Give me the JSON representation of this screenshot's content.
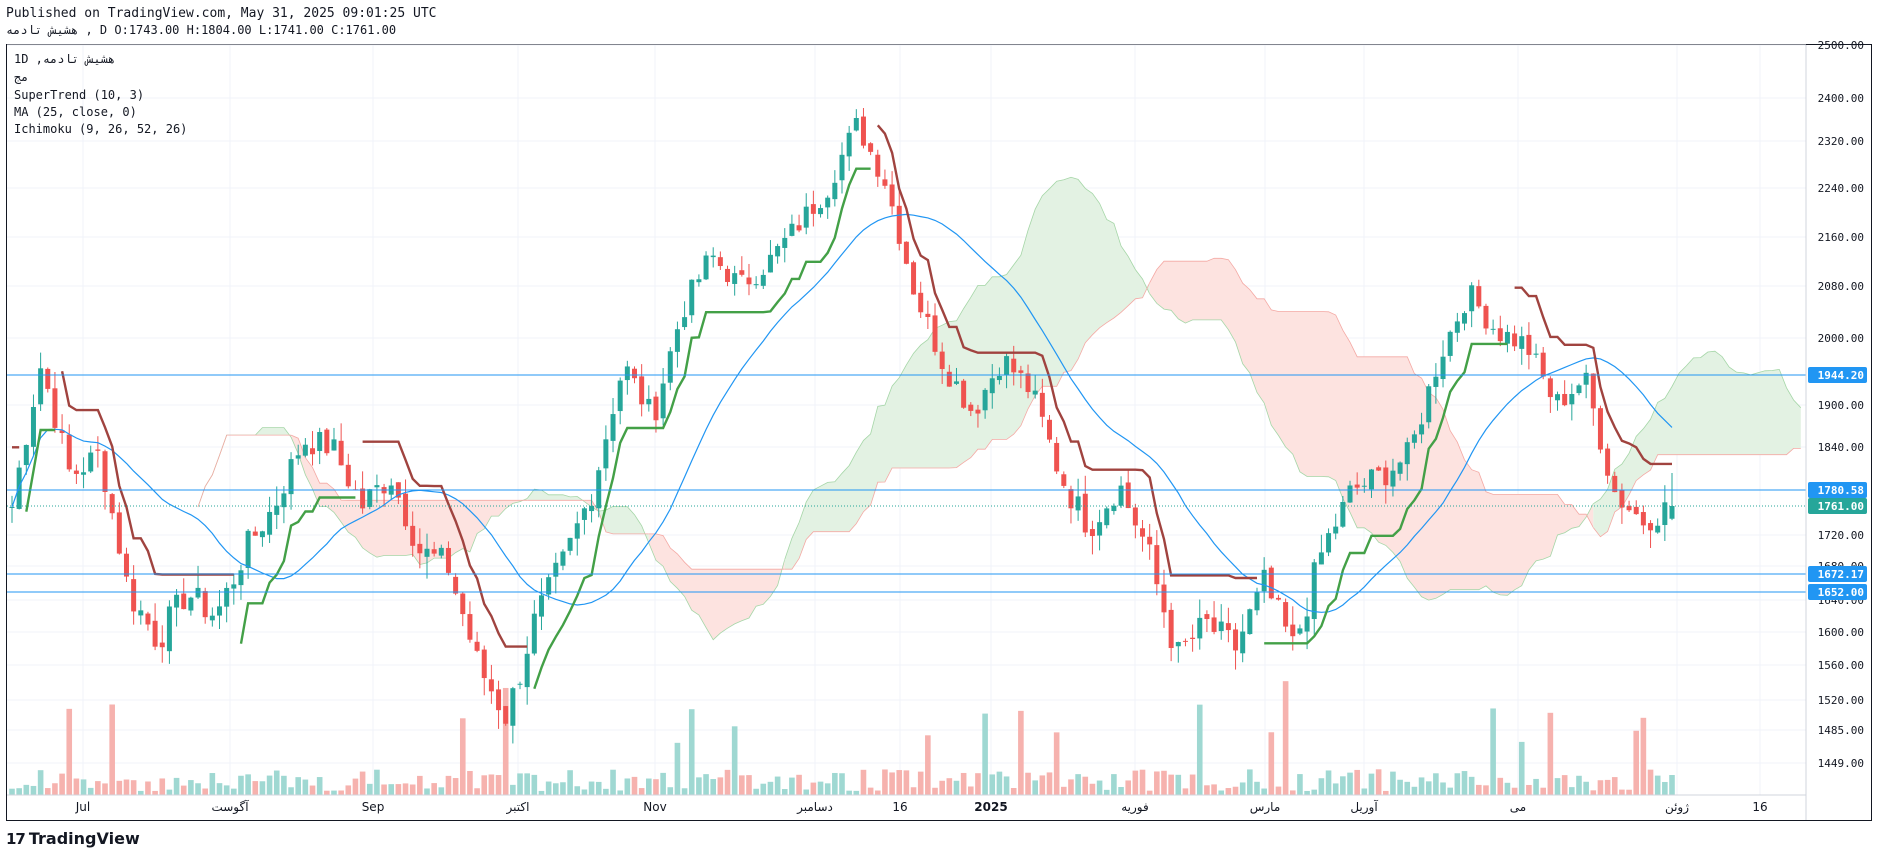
{
  "header": {
    "published": "Published on TradingView.com, May 31, 2025 09:01:25 UTC",
    "symbol_line": "هشیش تادمه , D O:1743.00 H:1804.00 L:1741.00 C:1761.00"
  },
  "legend": {
    "symbol": "1D ,هشیش تادمه",
    "sub": "مج",
    "supertrend": "SuperTrend (10, 3)",
    "ma": "MA (25, close, 0)",
    "ichimoku": "Ichimoku (9, 26, 52, 26)"
  },
  "brand": "TradingView",
  "colors": {
    "up": "#26a69a",
    "down": "#ef5350",
    "supertrend_up": "#43a047",
    "supertrend_down": "#a0433f",
    "ma": "#2196f3",
    "level": "#2196f3",
    "cloud_bull": "#e3f2e3",
    "cloud_bear": "#fde3e0"
  },
  "chart_data": {
    "type": "candlestick",
    "y_axis_ticks": [
      "2500.00",
      "2400.00",
      "2320.00",
      "2240.00",
      "2160.00",
      "2080.00",
      "2000.00",
      "1900.00",
      "1840.00",
      "1720.00",
      "1680.00",
      "1640.00",
      "1600.00",
      "1560.00",
      "1520.00",
      "1485.00",
      "1449.00"
    ],
    "x_axis_labels": [
      "Jul",
      "آگوست",
      "Sep",
      "اکتبر",
      "Nov",
      "دسامبر",
      "16",
      "2025",
      "فوریه",
      "مارس",
      "آوریل",
      "می",
      "ژوئن",
      "16"
    ],
    "price_levels": [
      {
        "value": 1944.2,
        "label": "1944.20"
      },
      {
        "value": 1780.58,
        "label": "1780.58"
      },
      {
        "value": 1761.0,
        "label": "1761.00",
        "style": "dotted",
        "color": "#26a69a"
      },
      {
        "value": 1672.17,
        "label": "1672.17"
      },
      {
        "value": 1652.0,
        "label": "1652.00"
      }
    ],
    "last": {
      "open": 1743.0,
      "high": 1804.0,
      "low": 1741.0,
      "close": 1761.0
    },
    "ohlc_path": [
      [
        "Jun",
        1760
      ],
      [
        "Jul",
        1960
      ],
      [
        "Jul",
        1800
      ],
      [
        "Jul",
        1830
      ],
      [
        "Aug",
        1650
      ],
      [
        "Aug",
        1590
      ],
      [
        "Aug",
        1650
      ],
      [
        "Sep",
        1620
      ],
      [
        "Sep",
        1700
      ],
      [
        "Sep",
        1760
      ],
      [
        "Sep",
        1850
      ],
      [
        "Oct",
        1840
      ],
      [
        "Oct",
        1760
      ],
      [
        "Oct",
        1800
      ],
      [
        "Oct",
        1700
      ],
      [
        "Nov",
        1680
      ],
      [
        "Nov",
        1560
      ],
      [
        "Nov",
        1500
      ],
      [
        "Nov",
        1620
      ],
      [
        "Dec",
        1690
      ],
      [
        "Dec",
        1790
      ],
      [
        "Dec",
        1960
      ],
      [
        "Dec",
        1880
      ],
      [
        "Dec",
        2040
      ],
      [
        "Dec",
        2130
      ],
      [
        "Dec",
        2080
      ],
      [
        "Jan",
        2120
      ],
      [
        "Jan",
        2180
      ],
      [
        "Jan",
        2240
      ],
      [
        "Jan",
        2350
      ],
      [
        "Jan",
        2250
      ],
      [
        "Feb",
        2070
      ],
      [
        "Feb",
        1960
      ],
      [
        "Feb",
        1890
      ],
      [
        "Feb",
        1970
      ],
      [
        "Feb",
        1920
      ],
      [
        "Mar",
        1800
      ],
      [
        "Mar",
        1730
      ],
      [
        "Mar",
        1790
      ],
      [
        "Mar",
        1700
      ],
      [
        "Mar",
        1570
      ],
      [
        "Apr",
        1610
      ],
      [
        "Apr",
        1580
      ],
      [
        "Apr",
        1660
      ],
      [
        "Apr",
        1580
      ],
      [
        "Apr",
        1700
      ],
      [
        "Apr",
        1780
      ],
      [
        "May",
        1800
      ],
      [
        "May",
        1830
      ],
      [
        "May",
        1970
      ],
      [
        "May",
        2070
      ],
      [
        "May",
        2010
      ],
      [
        "May",
        1990
      ],
      [
        "May",
        1900
      ],
      [
        "May",
        1940
      ],
      [
        "May",
        1780
      ],
      [
        "May",
        1740
      ],
      [
        "May",
        1761
      ]
    ],
    "series": [
      {
        "name": "SuperTrend (10, 3)"
      },
      {
        "name": "MA (25, close, 0)"
      },
      {
        "name": "Ichimoku (9, 26, 52, 26)"
      }
    ],
    "volume": true
  }
}
